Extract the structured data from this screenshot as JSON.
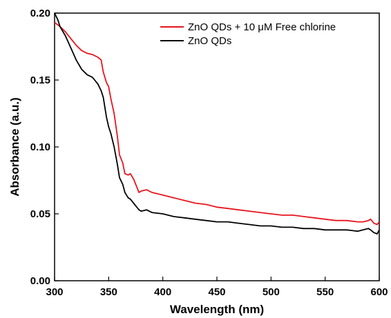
{
  "chart_data": {
    "type": "line",
    "xlabel": "Wavelength (nm)",
    "ylabel": "Absorbance (a.u.)",
    "xlim": [
      300,
      600
    ],
    "ylim": [
      0.0,
      0.2
    ],
    "xticks": [
      "300",
      "350",
      "400",
      "450",
      "500",
      "550",
      "600"
    ],
    "yticks": [
      "0.00",
      "0.05",
      "0.10",
      "0.15",
      "0.20"
    ],
    "legend_position": "top-right",
    "series": [
      {
        "name": "ZnO QDs + 10 μM Free chlorine",
        "color": "#e8141c",
        "x": [
          300,
          305,
          310,
          315,
          320,
          325,
          330,
          335,
          340,
          343,
          345,
          348,
          350,
          352,
          355,
          358,
          360,
          363,
          365,
          368,
          370,
          373,
          375,
          378,
          380,
          385,
          390,
          400,
          410,
          420,
          430,
          440,
          450,
          460,
          470,
          480,
          490,
          500,
          510,
          520,
          530,
          540,
          550,
          560,
          570,
          580,
          585,
          590,
          592,
          595,
          598,
          600
        ],
        "y": [
          0.193,
          0.19,
          0.186,
          0.181,
          0.176,
          0.172,
          0.17,
          0.169,
          0.167,
          0.165,
          0.156,
          0.148,
          0.145,
          0.136,
          0.125,
          0.108,
          0.094,
          0.088,
          0.08,
          0.079,
          0.08,
          0.076,
          0.072,
          0.066,
          0.067,
          0.068,
          0.066,
          0.064,
          0.062,
          0.06,
          0.058,
          0.057,
          0.055,
          0.054,
          0.053,
          0.052,
          0.051,
          0.05,
          0.049,
          0.049,
          0.048,
          0.047,
          0.046,
          0.045,
          0.045,
          0.044,
          0.044,
          0.045,
          0.046,
          0.043,
          0.042,
          0.044
        ]
      },
      {
        "name": "ZnO QDs",
        "color": "#000000",
        "x": [
          300,
          303,
          305,
          310,
          315,
          320,
          325,
          330,
          335,
          340,
          343,
          345,
          348,
          350,
          352,
          355,
          358,
          360,
          363,
          365,
          368,
          370,
          373,
          375,
          378,
          380,
          385,
          390,
          400,
          410,
          420,
          430,
          440,
          450,
          460,
          470,
          480,
          490,
          500,
          510,
          520,
          530,
          540,
          550,
          560,
          570,
          580,
          585,
          590,
          592,
          595,
          598,
          600
        ],
        "y": [
          0.2,
          0.195,
          0.19,
          0.183,
          0.174,
          0.165,
          0.158,
          0.154,
          0.152,
          0.147,
          0.142,
          0.137,
          0.122,
          0.115,
          0.11,
          0.1,
          0.087,
          0.077,
          0.072,
          0.066,
          0.062,
          0.061,
          0.058,
          0.056,
          0.053,
          0.052,
          0.053,
          0.051,
          0.05,
          0.048,
          0.047,
          0.046,
          0.045,
          0.044,
          0.044,
          0.043,
          0.042,
          0.041,
          0.041,
          0.04,
          0.04,
          0.039,
          0.039,
          0.038,
          0.038,
          0.038,
          0.037,
          0.038,
          0.039,
          0.038,
          0.036,
          0.035,
          0.038
        ]
      }
    ]
  }
}
